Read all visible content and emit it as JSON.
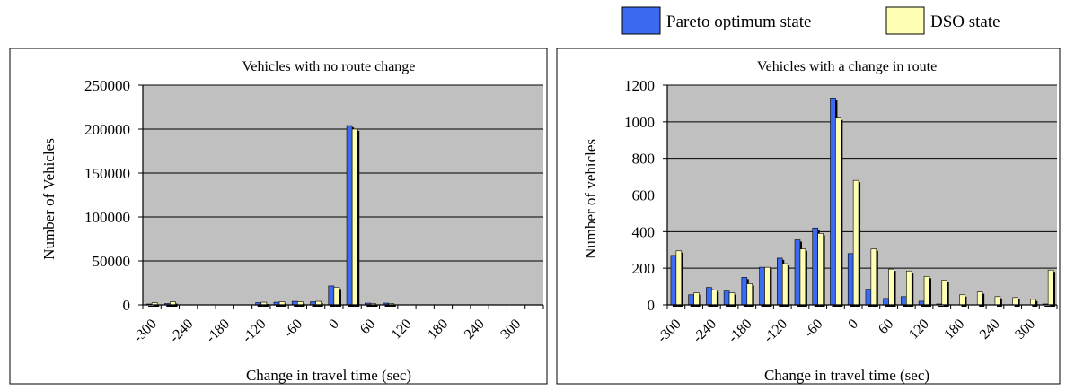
{
  "legend": [
    {
      "label": "Pareto optimum state",
      "color": "#3a6bf0"
    },
    {
      "label": "DSO state",
      "color": "#ffffb4"
    }
  ],
  "colors": {
    "plot_bg": "#c0c0c0",
    "shadow": "#000000",
    "frame": "#000000"
  },
  "chart_data": [
    {
      "type": "bar",
      "title": "Vehicles with no route change",
      "xlabel": "Change in travel time (sec)",
      "ylabel": "Number of Vehicles",
      "ylim": [
        0,
        250000
      ],
      "yticks": [
        "0",
        "50000",
        "100000",
        "150000",
        "200000",
        "250000"
      ],
      "xtick_labels": [
        "-300",
        "-240",
        "-180",
        "-120",
        "-60",
        "0",
        "60",
        "120",
        "180",
        "240",
        "300"
      ],
      "grid": true,
      "legend_position": "top-right",
      "categories": [
        -300,
        -270,
        -240,
        -210,
        -180,
        -150,
        -120,
        -90,
        -60,
        -30,
        0,
        30,
        60,
        90,
        120,
        150,
        180,
        210,
        240,
        270,
        300,
        330
      ],
      "series": [
        {
          "name": "Pareto optimum state",
          "values": [
            1000,
            1500,
            0,
            0,
            0,
            0,
            2500,
            3000,
            4000,
            3500,
            21500,
            204000,
            2000,
            2000,
            0,
            0,
            0,
            0,
            0,
            0,
            0,
            0
          ]
        },
        {
          "name": "DSO state",
          "values": [
            2500,
            3500,
            0,
            0,
            0,
            0,
            3000,
            3500,
            3500,
            4000,
            20000,
            200000,
            1500,
            1500,
            0,
            0,
            0,
            0,
            0,
            0,
            0,
            0
          ]
        }
      ]
    },
    {
      "type": "bar",
      "title": "Vehicles with a change in route",
      "xlabel": "Change in travel time (sec)",
      "ylabel": "Number of vehicles",
      "ylim": [
        0,
        1200
      ],
      "yticks": [
        "0",
        "200",
        "400",
        "600",
        "800",
        "1000",
        "1200"
      ],
      "xtick_labels": [
        "-300",
        "-240",
        "-180",
        "-120",
        "-60",
        "0",
        "60",
        "120",
        "180",
        "240",
        "300"
      ],
      "grid": true,
      "legend_position": "top-right",
      "categories": [
        -300,
        -270,
        -240,
        -210,
        -180,
        -150,
        -120,
        -90,
        -60,
        -30,
        0,
        30,
        60,
        90,
        120,
        150,
        180,
        210,
        240,
        270,
        300,
        330
      ],
      "series": [
        {
          "name": "Pareto optimum state",
          "values": [
            270,
            55,
            95,
            75,
            150,
            205,
            255,
            355,
            420,
            1130,
            280,
            85,
            35,
            45,
            20,
            5,
            0,
            0,
            0,
            0,
            0,
            5
          ]
        },
        {
          "name": "DSO state",
          "values": [
            295,
            65,
            80,
            65,
            115,
            205,
            225,
            305,
            390,
            1020,
            680,
            305,
            195,
            185,
            155,
            135,
            55,
            70,
            45,
            40,
            30,
            190
          ]
        }
      ]
    }
  ]
}
